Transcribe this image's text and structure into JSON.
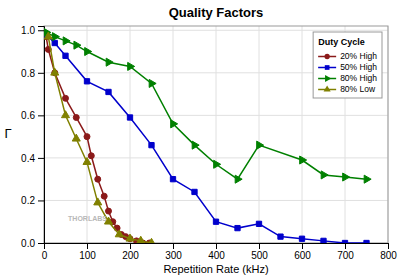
{
  "chart_data": {
    "type": "line",
    "title": "Quality Factors",
    "x_label": "Repetition Rate (kHz)",
    "y_label": "Γ",
    "xlim": [
      0,
      800
    ],
    "ylim": [
      0,
      1.02
    ],
    "xticks": [
      0,
      100,
      200,
      300,
      400,
      500,
      600,
      700,
      800
    ],
    "yticks": [
      {
        "value": 0,
        "label": "0.0"
      },
      0.2,
      0.4,
      0.6,
      0.8,
      {
        "value": 1,
        "label": "1.0"
      }
    ],
    "grid": true,
    "legend": "upper right",
    "legend_title": "Duty Cycle",
    "annotations": [
      {
        "text": "THORLABS"
      }
    ],
    "series": [
      {
        "name": "20% High",
        "color": "#8B1A1A",
        "marker": "circle",
        "x": [
          5,
          10,
          25,
          50,
          75,
          100,
          110,
          125,
          140,
          150,
          160,
          170,
          180,
          190,
          200,
          215,
          230,
          245
        ],
        "values": [
          0.97,
          0.91,
          0.8,
          0.68,
          0.59,
          0.5,
          0.41,
          0.3,
          0.22,
          0.15,
          0.1,
          0.07,
          0.04,
          0.03,
          0.02,
          0.01,
          0.0,
          0.0
        ]
      },
      {
        "name": "50% High",
        "color": "#0000CC",
        "marker": "square",
        "x": [
          5,
          25,
          50,
          100,
          150,
          200,
          250,
          300,
          350,
          400,
          450,
          500,
          550,
          600,
          650,
          700,
          750
        ],
        "values": [
          0.98,
          0.94,
          0.88,
          0.76,
          0.71,
          0.59,
          0.46,
          0.3,
          0.24,
          0.1,
          0.07,
          0.09,
          0.03,
          0.02,
          0.01,
          0.0,
          0.0
        ]
      },
      {
        "name": "80% High",
        "color": "#008000",
        "marker": "triangle-right",
        "x": [
          5,
          25,
          50,
          75,
          100,
          150,
          200,
          250,
          300,
          350,
          400,
          450,
          500,
          600,
          650,
          700,
          750
        ],
        "values": [
          0.99,
          0.97,
          0.95,
          0.93,
          0.9,
          0.85,
          0.83,
          0.75,
          0.56,
          0.46,
          0.37,
          0.3,
          0.46,
          0.39,
          0.32,
          0.31,
          0.3
        ]
      },
      {
        "name": "80% Low",
        "color": "#808000",
        "marker": "triangle-up",
        "x": [
          10,
          25,
          50,
          75,
          100,
          125,
          150,
          175,
          200,
          225,
          250
        ],
        "values": [
          0.97,
          0.8,
          0.6,
          0.49,
          0.38,
          0.19,
          0.1,
          0.04,
          0.02,
          0.01,
          0.0
        ]
      }
    ]
  }
}
